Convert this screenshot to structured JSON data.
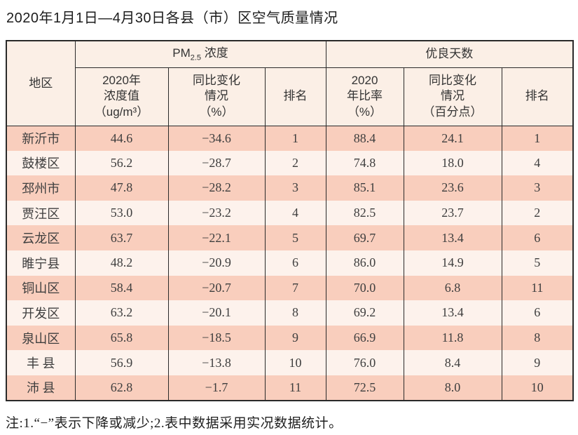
{
  "title": "2020年1月1日—4月30日各县（市）区空气质量情况",
  "table": {
    "header": {
      "region": "地区",
      "pm_group": {
        "prefix": "PM",
        "sub": "2.5",
        "suffix": " 浓度"
      },
      "days_group": "优良天数",
      "pm_value": "2020年\n浓度值\n（ug/m³）",
      "pm_change": "同比变化\n情况\n（%）",
      "pm_rank": "排名",
      "days_rate": "2020\n年比率\n（%）",
      "days_change": "同比变化\n情况\n（百分点）",
      "days_rank": "排名"
    },
    "rows": [
      {
        "region": "新沂市",
        "pm_value": "44.6",
        "pm_change": "−34.6",
        "pm_rank": "1",
        "days_rate": "88.4",
        "days_change": "24.1",
        "days_rank": "1"
      },
      {
        "region": "鼓楼区",
        "pm_value": "56.2",
        "pm_change": "−28.7",
        "pm_rank": "2",
        "days_rate": "74.8",
        "days_change": "18.0",
        "days_rank": "4"
      },
      {
        "region": "邳州市",
        "pm_value": "47.8",
        "pm_change": "−28.2",
        "pm_rank": "3",
        "days_rate": "85.1",
        "days_change": "23.6",
        "days_rank": "3"
      },
      {
        "region": "贾汪区",
        "pm_value": "53.0",
        "pm_change": "−23.2",
        "pm_rank": "4",
        "days_rate": "82.5",
        "days_change": "23.7",
        "days_rank": "2"
      },
      {
        "region": "云龙区",
        "pm_value": "63.7",
        "pm_change": "−22.1",
        "pm_rank": "5",
        "days_rate": "69.7",
        "days_change": "13.4",
        "days_rank": "6"
      },
      {
        "region": "睢宁县",
        "pm_value": "48.2",
        "pm_change": "−20.9",
        "pm_rank": "6",
        "days_rate": "86.0",
        "days_change": "14.9",
        "days_rank": "5"
      },
      {
        "region": "铜山区",
        "pm_value": "58.4",
        "pm_change": "−20.7",
        "pm_rank": "7",
        "days_rate": "70.0",
        "days_change": "6.8",
        "days_rank": "11"
      },
      {
        "region": "开发区",
        "pm_value": "63.2",
        "pm_change": "−20.1",
        "pm_rank": "8",
        "days_rate": "69.2",
        "days_change": "13.4",
        "days_rank": "6"
      },
      {
        "region": "泉山区",
        "pm_value": "65.8",
        "pm_change": "−18.5",
        "pm_rank": "9",
        "days_rate": "66.9",
        "days_change": "11.8",
        "days_rank": "8"
      },
      {
        "region": "丰 县",
        "pm_value": "56.9",
        "pm_change": "−13.8",
        "pm_rank": "10",
        "days_rate": "76.0",
        "days_change": "8.4",
        "days_rank": "9"
      },
      {
        "region": "沛 县",
        "pm_value": "62.8",
        "pm_change": "−1.7",
        "pm_rank": "11",
        "days_rate": "72.5",
        "days_change": "8.0",
        "days_rank": "10"
      }
    ]
  },
  "footnote": "注:1.“−”表示下降或减少;2.表中数据采用实况数据统计。",
  "colors": {
    "row_odd": "#f9cebd",
    "row_even": "#fdf2ec",
    "header_bg": "#fbefe6",
    "border": "#2a2a2a"
  }
}
